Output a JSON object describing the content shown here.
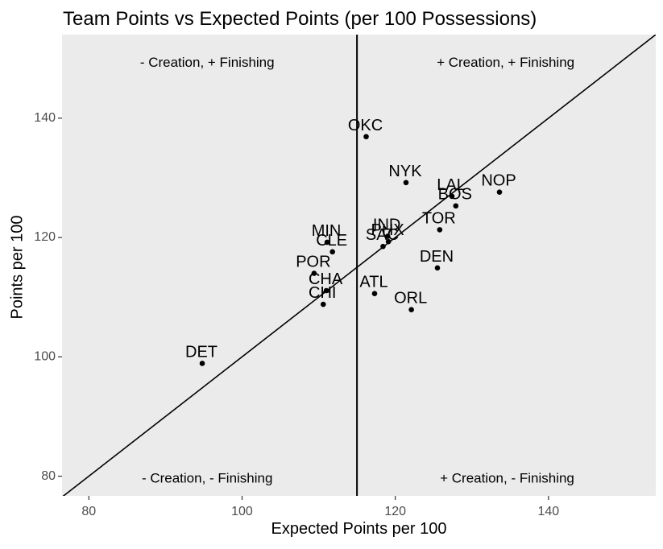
{
  "chart_data": {
    "type": "scatter",
    "title": "Team Points vs Expected Points (per 100 Possessions)",
    "xlabel": "Expected Points per 100",
    "ylabel": "Points per 100",
    "xlim": [
      76.5,
      154
    ],
    "ylim": [
      76.7,
      154
    ],
    "x_ticks": [
      80,
      100,
      120,
      140
    ],
    "y_ticks": [
      80,
      100,
      120,
      140
    ],
    "grid": false,
    "panel_background": "#EBEBEB",
    "vertical_line_x": 115,
    "reference_line": "y = x",
    "quadrant_labels": {
      "top_left": "- Creation, + Finishing",
      "top_right": "+ Creation, + Finishing",
      "bottom_left": "- Creation, - Finishing",
      "bottom_right": "+ Creation, - Finishing"
    },
    "points": [
      {
        "label": "OKC",
        "x": 116.2,
        "y": 136.9
      },
      {
        "label": "NYK",
        "x": 121.4,
        "y": 129.2
      },
      {
        "label": "NOP",
        "x": 133.6,
        "y": 127.6
      },
      {
        "label": "LAL",
        "x": 127.4,
        "y": 126.9
      },
      {
        "label": "BOS",
        "x": 127.9,
        "y": 125.3
      },
      {
        "label": "TOR",
        "x": 125.8,
        "y": 121.3
      },
      {
        "label": "IND",
        "x": 119.0,
        "y": 120.2
      },
      {
        "label": "PHX",
        "x": 119.1,
        "y": 119.3
      },
      {
        "label": "SAC",
        "x": 118.4,
        "y": 118.5
      },
      {
        "label": "MIN",
        "x": 111.1,
        "y": 119.2
      },
      {
        "label": "CLE",
        "x": 111.8,
        "y": 117.6
      },
      {
        "label": "DEN",
        "x": 125.5,
        "y": 114.9
      },
      {
        "label": "POR",
        "x": 109.4,
        "y": 114.0
      },
      {
        "label": "CHA",
        "x": 111.0,
        "y": 111.1
      },
      {
        "label": "ATL",
        "x": 117.3,
        "y": 110.6
      },
      {
        "label": "CHI",
        "x": 110.6,
        "y": 108.8
      },
      {
        "label": "ORL",
        "x": 122.1,
        "y": 107.9
      },
      {
        "label": "DET",
        "x": 94.8,
        "y": 98.9
      }
    ]
  }
}
